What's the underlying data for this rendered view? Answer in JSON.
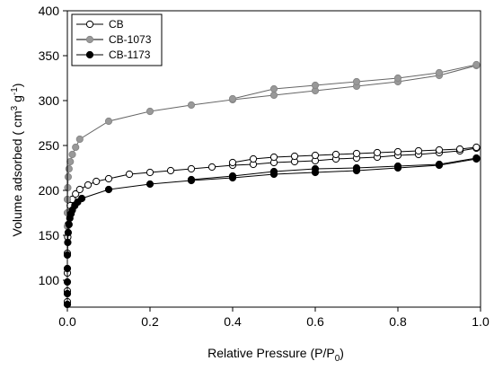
{
  "chart_data": {
    "type": "line",
    "xlabel_main": "Relative Pressure (P/P",
    "xlabel_sub": "0",
    "xlabel_end": ")",
    "ylabel_main": "Volume adsorbed ( cm",
    "ylabel_sup1": "3",
    "ylabel_mid": " g",
    "ylabel_sup2": "-1",
    "ylabel_end": ")",
    "xlim": [
      0,
      1.0
    ],
    "ylim": [
      70,
      400
    ],
    "x_ticks": [
      "0.0",
      "0.2",
      "0.4",
      "0.6",
      "0.8",
      "1.0"
    ],
    "x_tick_values": [
      0,
      0.2,
      0.4,
      0.6,
      0.8,
      1.0
    ],
    "y_ticks": [
      "100",
      "150",
      "200",
      "250",
      "300",
      "350",
      "400"
    ],
    "y_tick_values": [
      100,
      150,
      200,
      250,
      300,
      350,
      400
    ],
    "legend_position": "top-left",
    "series": [
      {
        "name": "CB",
        "marker": "open-circle",
        "color": "#000000",
        "adsorption": {
          "x": [
            0.0,
            0.0,
            0.0,
            0.0,
            0.001,
            0.002,
            0.004,
            0.007,
            0.012,
            0.02,
            0.03,
            0.05,
            0.07,
            0.1,
            0.15,
            0.2,
            0.25,
            0.3,
            0.35,
            0.4,
            0.45,
            0.5,
            0.55,
            0.6,
            0.65,
            0.7,
            0.75,
            0.8,
            0.85,
            0.9,
            0.95,
            0.99
          ],
          "y": [
            76,
            88,
            108,
            130,
            148,
            162,
            174,
            183,
            190,
            196,
            201,
            206,
            210,
            213,
            218,
            220,
            222,
            224,
            226,
            228,
            229,
            231,
            232,
            233,
            235,
            236,
            237,
            239,
            240,
            242,
            244,
            247
          ]
        },
        "desorption": {
          "x": [
            0.99,
            0.95,
            0.9,
            0.85,
            0.8,
            0.75,
            0.7,
            0.65,
            0.6,
            0.55,
            0.5,
            0.45,
            0.4
          ],
          "y": [
            248,
            246,
            245,
            244,
            243,
            242,
            241,
            240,
            239,
            238,
            237,
            235,
            231
          ]
        }
      },
      {
        "name": "CB-1073",
        "marker": "filled-circle",
        "color": "#999999",
        "adsorption": {
          "x": [
            0.0,
            0.0,
            0.0,
            0.001,
            0.002,
            0.004,
            0.007,
            0.012,
            0.02,
            0.03,
            0.1,
            0.2,
            0.3,
            0.4,
            0.5,
            0.6,
            0.7,
            0.8,
            0.9,
            0.99
          ],
          "y": [
            160,
            175,
            190,
            203,
            215,
            224,
            232,
            240,
            248,
            257,
            277,
            288,
            295,
            301,
            306,
            311,
            316,
            321,
            328,
            339
          ]
        },
        "desorption": {
          "x": [
            0.99,
            0.9,
            0.8,
            0.7,
            0.6,
            0.5,
            0.4
          ],
          "y": [
            340,
            331,
            325,
            321,
            317,
            313,
            302
          ]
        }
      },
      {
        "name": "CB-1173",
        "marker": "filled-circle",
        "color": "#000000",
        "adsorption": {
          "x": [
            0.0,
            0.0,
            0.0,
            0.0,
            0.0,
            0.001,
            0.002,
            0.004,
            0.006,
            0.009,
            0.012,
            0.018,
            0.025,
            0.035,
            0.1,
            0.2,
            0.3,
            0.4,
            0.5,
            0.6,
            0.7,
            0.8,
            0.9,
            0.99
          ],
          "y": [
            73,
            85,
            98,
            113,
            128,
            142,
            153,
            162,
            169,
            174,
            178,
            183,
            187,
            191,
            201,
            207,
            211,
            214,
            218,
            220,
            222,
            225,
            228,
            235
          ]
        },
        "desorption": {
          "x": [
            0.99,
            0.9,
            0.8,
            0.7,
            0.6,
            0.5,
            0.4,
            0.3
          ],
          "y": [
            236,
            229,
            227,
            225,
            224,
            221,
            216,
            212
          ]
        }
      }
    ]
  }
}
